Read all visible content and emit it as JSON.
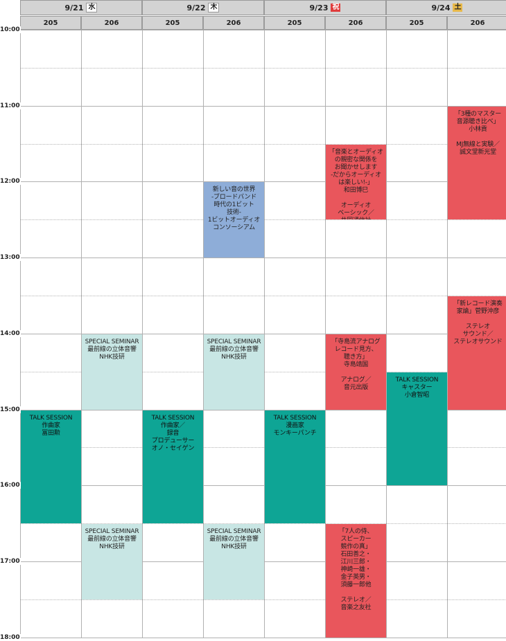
{
  "days": [
    {
      "date": "9/21",
      "weekday": "水",
      "kind": "weekday",
      "rooms": [
        "205",
        "206"
      ]
    },
    {
      "date": "9/22",
      "weekday": "木",
      "kind": "weekday",
      "rooms": [
        "205",
        "206"
      ]
    },
    {
      "date": "9/23",
      "weekday": "祝",
      "kind": "holiday",
      "rooms": [
        "205",
        "206"
      ]
    },
    {
      "date": "9/24",
      "weekday": "土",
      "kind": "saturday",
      "rooms": [
        "205",
        "206"
      ]
    }
  ],
  "times": [
    "10:00",
    "11:00",
    "12:00",
    "13:00",
    "14:00",
    "15:00",
    "16:00",
    "17:00",
    "18:00"
  ],
  "events": [
    {
      "day": 0,
      "room": 0,
      "start": 15.0,
      "end": 16.5,
      "color": "teal",
      "text": "TALK SESSION\n作曲家\n冨田勲"
    },
    {
      "day": 0,
      "room": 1,
      "start": 14.0,
      "end": 15.0,
      "color": "light",
      "text": "SPECIAL SEMINAR\n最前線の立体音響\nNHK技研"
    },
    {
      "day": 0,
      "room": 1,
      "start": 16.5,
      "end": 17.5,
      "color": "light",
      "text": "SPECIAL SEMINAR\n最前線の立体音響\nNHK技研"
    },
    {
      "day": 1,
      "room": 1,
      "start": 12.0,
      "end": 13.0,
      "color": "blue",
      "text": "新しい音の世界\n-ブロードバンド\n時代の1ビット\n技術-\n1ビットオーディオ\nコンソーシアム"
    },
    {
      "day": 1,
      "room": 1,
      "start": 14.0,
      "end": 15.0,
      "color": "light",
      "text": "SPECIAL SEMINAR\n最前線の立体音響\nNHK技研"
    },
    {
      "day": 1,
      "room": 0,
      "start": 15.0,
      "end": 16.5,
      "color": "teal",
      "text": "TALK SESSION\n作曲家／\n録音\nプロデューサー\nオノ・セイゲン"
    },
    {
      "day": 1,
      "room": 1,
      "start": 16.5,
      "end": 17.5,
      "color": "light",
      "text": "SPECIAL SEMINAR\n最前線の立体音響\nNHK技研"
    },
    {
      "day": 2,
      "room": 1,
      "start": 11.5,
      "end": 12.5,
      "color": "red",
      "text": "「音楽とオーディオ\nの親密な関係を\nお聞かせします\n-だからオーディオ\nは楽しい!-」\n和田博巳\n\nオーディオ\nベーシック／\n共同通信社"
    },
    {
      "day": 2,
      "room": 1,
      "start": 14.0,
      "end": 15.0,
      "color": "red",
      "text": "「寺島流アナログ\nレコード見方、\n聴き方」\n寺島靖国\n\nアナログ／\n音元出版"
    },
    {
      "day": 2,
      "room": 0,
      "start": 15.0,
      "end": 16.5,
      "color": "teal",
      "text": "TALK SESSION\n漫画家\nモンキーパンチ"
    },
    {
      "day": 2,
      "room": 1,
      "start": 16.5,
      "end": 18.0,
      "color": "red",
      "text": "「7人の侍、\nスピーカー\n競作の真」\n石田善之・\n江川三郎・\n神崎一雄・\n金子英男・\n須藤一郎他\n\nステレオ／\n音楽之友社"
    },
    {
      "day": 3,
      "room": 1,
      "start": 11.0,
      "end": 12.5,
      "color": "red",
      "text": "「3種のマスター\n音源聴き比べ」\n小林貢\n\nMJ無線と実験／\n誠文堂新光堂"
    },
    {
      "day": 3,
      "room": 1,
      "start": 13.5,
      "end": 15.0,
      "color": "red",
      "text": "「新レコード演奏\n家論」菅野沖彦\n\nステレオ\nサウンド／\nステレオサウンド"
    },
    {
      "day": 3,
      "room": 0,
      "start": 14.5,
      "end": 16.0,
      "color": "teal",
      "text": "TALK SESSION\nキャスター\n小倉智昭"
    }
  ]
}
